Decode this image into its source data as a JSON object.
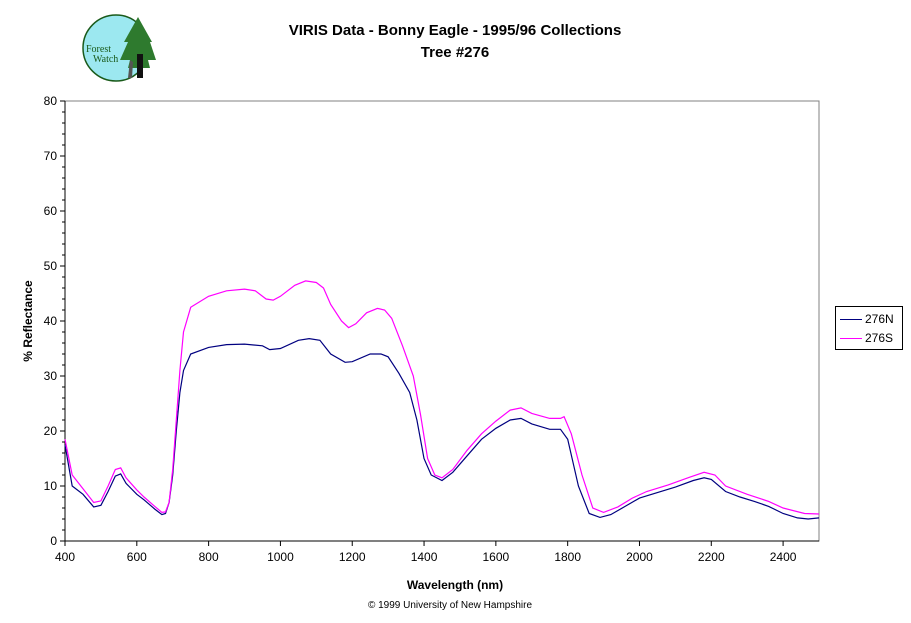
{
  "logo": {
    "text_line1": "Forest",
    "text_line2": "Watch"
  },
  "copyright": "© 1999 University of New Hampshire",
  "chart_data": {
    "type": "line",
    "title": "VIRIS Data - Bonny Eagle - 1995/96 Collections",
    "subtitle": "Tree #276",
    "xlabel": "Wavelength (nm)",
    "ylabel": "% Reflectance",
    "xlim": [
      400,
      2500
    ],
    "ylim": [
      0,
      80
    ],
    "xticks": [
      400,
      600,
      800,
      1000,
      1200,
      1400,
      1600,
      1800,
      2000,
      2200,
      2400
    ],
    "yticks": [
      0,
      10,
      20,
      30,
      40,
      50,
      60,
      70,
      80
    ],
    "grid": false,
    "legend": "right",
    "series": [
      {
        "name": "276N",
        "color": "#000080",
        "x": [
          400,
          420,
          450,
          480,
          500,
          520,
          540,
          555,
          570,
          600,
          620,
          650,
          670,
          680,
          690,
          700,
          710,
          720,
          730,
          750,
          800,
          850,
          900,
          950,
          970,
          1000,
          1050,
          1080,
          1110,
          1140,
          1180,
          1200,
          1250,
          1280,
          1300,
          1330,
          1360,
          1380,
          1400,
          1420,
          1450,
          1480,
          1520,
          1560,
          1600,
          1640,
          1670,
          1700,
          1750,
          1780,
          1800,
          1830,
          1860,
          1890,
          1920,
          1960,
          2000,
          2050,
          2100,
          2150,
          2180,
          2200,
          2240,
          2280,
          2320,
          2360,
          2400,
          2440,
          2470,
          2500
        ],
        "y": [
          17.5,
          10,
          8.5,
          6.2,
          6.5,
          9,
          11.8,
          12.2,
          10.5,
          8.5,
          7.5,
          5.8,
          4.8,
          5,
          7,
          12,
          20,
          27,
          31,
          34,
          35.2,
          35.7,
          35.8,
          35.5,
          34.8,
          35,
          36.5,
          36.8,
          36.5,
          34,
          32.5,
          32.6,
          34,
          34,
          33.5,
          30.5,
          27,
          22,
          15,
          12,
          11,
          12.5,
          15.5,
          18.5,
          20.5,
          22,
          22.3,
          21.3,
          20.3,
          20.3,
          18.5,
          10,
          5,
          4.3,
          4.8,
          6.3,
          7.8,
          8.8,
          9.8,
          11,
          11.5,
          11.2,
          9,
          8,
          7.2,
          6.3,
          5,
          4.2,
          4,
          4.2
        ]
      },
      {
        "name": "276S",
        "color": "#FF00FF",
        "x": [
          400,
          420,
          450,
          480,
          500,
          520,
          540,
          555,
          570,
          600,
          620,
          650,
          670,
          680,
          690,
          700,
          710,
          720,
          730,
          750,
          800,
          850,
          900,
          930,
          960,
          980,
          1000,
          1040,
          1070,
          1100,
          1120,
          1140,
          1170,
          1190,
          1210,
          1240,
          1270,
          1290,
          1310,
          1340,
          1370,
          1390,
          1410,
          1430,
          1450,
          1480,
          1520,
          1560,
          1600,
          1640,
          1670,
          1700,
          1750,
          1780,
          1790,
          1810,
          1840,
          1870,
          1900,
          1940,
          1980,
          2020,
          2080,
          2140,
          2180,
          2210,
          2240,
          2300,
          2360,
          2400,
          2460,
          2500
        ],
        "y": [
          18.5,
          12,
          9.5,
          7,
          7.3,
          10,
          13,
          13.3,
          11.5,
          9.3,
          8,
          6.3,
          5.2,
          5.3,
          7,
          13,
          22,
          31,
          38,
          42.5,
          44.5,
          45.5,
          45.8,
          45.5,
          44,
          43.8,
          44.5,
          46.5,
          47.3,
          47,
          46,
          43,
          40,
          38.8,
          39.5,
          41.5,
          42.3,
          42,
          40.5,
          35.5,
          30,
          23,
          15,
          12,
          11.5,
          13,
          16.5,
          19.5,
          21.8,
          23.8,
          24.2,
          23.2,
          22.3,
          22.3,
          22.6,
          19.5,
          12,
          6,
          5.2,
          6.2,
          7.8,
          9,
          10.2,
          11.6,
          12.5,
          12,
          10,
          8.5,
          7.2,
          6,
          5,
          4.9
        ]
      }
    ]
  }
}
